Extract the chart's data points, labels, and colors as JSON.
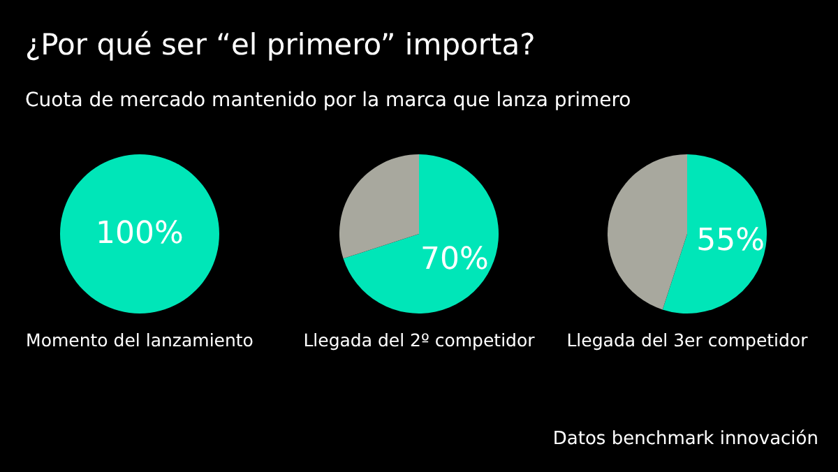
{
  "chart_data": [
    {
      "type": "pie",
      "title": "¿Por qué ser “el primero” importa?",
      "subtitle": "Cuota de mercado mantenido por la marca que lanza primero",
      "xlabel": "Momento del lanzamiento",
      "categories": [
        null
      ],
      "values": [
        100
      ],
      "colors": [
        "#00e6b8"
      ],
      "value_labels": [
        "100%"
      ]
    },
    {
      "type": "pie",
      "xlabel": "Llegada del 2º competidor",
      "categories": [
        null,
        null
      ],
      "values": [
        70,
        30
      ],
      "colors": [
        "#00e6b8",
        "#a8a89e"
      ],
      "value_labels": [
        "70%",
        null
      ]
    },
    {
      "type": "pie",
      "xlabel": "Llegada del 3er competidor",
      "categories": [
        null,
        null
      ],
      "values": [
        55,
        45
      ],
      "colors": [
        "#00e6b8",
        "#a8a89e"
      ],
      "value_labels": [
        "55%",
        null
      ],
      "annotations": [
        "Datos benchmark innovación"
      ]
    }
  ]
}
